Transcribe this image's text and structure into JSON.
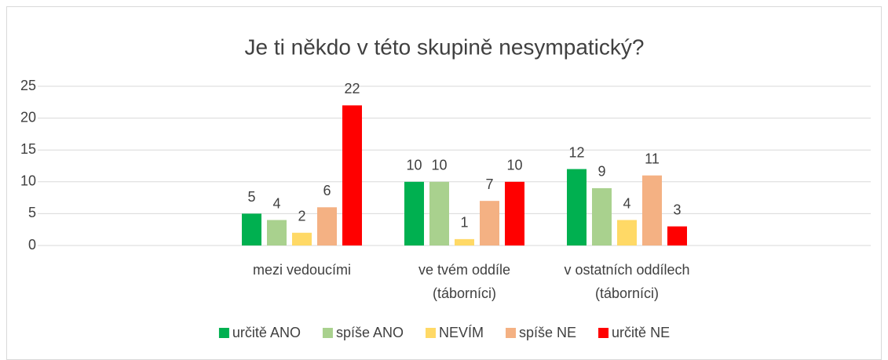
{
  "chart_data": {
    "type": "bar",
    "title": "Je ti někdo v této skupině nesympatický?",
    "categories": [
      null,
      "mezi vedoucími",
      "ve tvém oddíle (táborníci)",
      "v ostatních oddílech (táborníci)",
      null
    ],
    "series": [
      {
        "name": "určitě ANO",
        "color": "#00b050",
        "values": [
          null,
          5,
          10,
          12,
          null
        ]
      },
      {
        "name": "spíše ANO",
        "color": "#a9d18e",
        "values": [
          null,
          4,
          10,
          9,
          null
        ]
      },
      {
        "name": "NEVÍM",
        "color": "#ffd966",
        "values": [
          null,
          2,
          1,
          4,
          null
        ]
      },
      {
        "name": "spíše NE",
        "color": "#f4b183",
        "values": [
          null,
          6,
          7,
          11,
          null
        ]
      },
      {
        "name": "určitě NE",
        "color": "#ff0000",
        "values": [
          null,
          22,
          10,
          3,
          null
        ]
      }
    ],
    "ylim": [
      0,
      25
    ],
    "yticks": [
      0,
      5,
      10,
      15,
      20,
      25
    ],
    "grid": true,
    "legend": "bottom"
  }
}
